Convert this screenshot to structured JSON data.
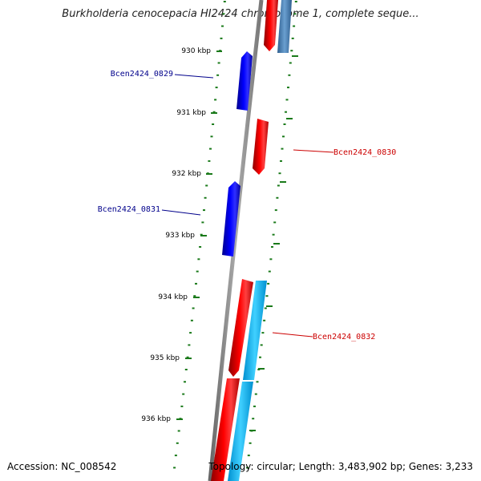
{
  "title": "Burkholderia cenocepacia HI2424 chromosome 1, complete seque...",
  "footer": {
    "accession": "Accession: NC_008542",
    "topology": "Topology: circular; Length: 3,483,902 bp; Genes: 3,233"
  },
  "colors": {
    "backbone": "#888888",
    "ticks": "#1a7a1a",
    "forward_cds": "#ff0000",
    "reverse_cds": "#0000ee",
    "other_feature_dark": "#4682b4",
    "other_feature_light": "#00bfff",
    "label_forward": "#cc0000",
    "label_reverse": "#00008b"
  },
  "axis": {
    "unit": "kbp",
    "tick_labels": [
      "930 kbp",
      "931 kbp",
      "932 kbp",
      "933 kbp",
      "934 kbp",
      "935 kbp",
      "936 kbp"
    ]
  },
  "gene_labels": [
    {
      "name": "Bcen2424_0829",
      "strand": "reverse"
    },
    {
      "name": "Bcen2424_0830",
      "strand": "forward"
    },
    {
      "name": "Bcen2424_0831",
      "strand": "reverse"
    },
    {
      "name": "Bcen2424_0832",
      "strand": "forward"
    }
  ]
}
